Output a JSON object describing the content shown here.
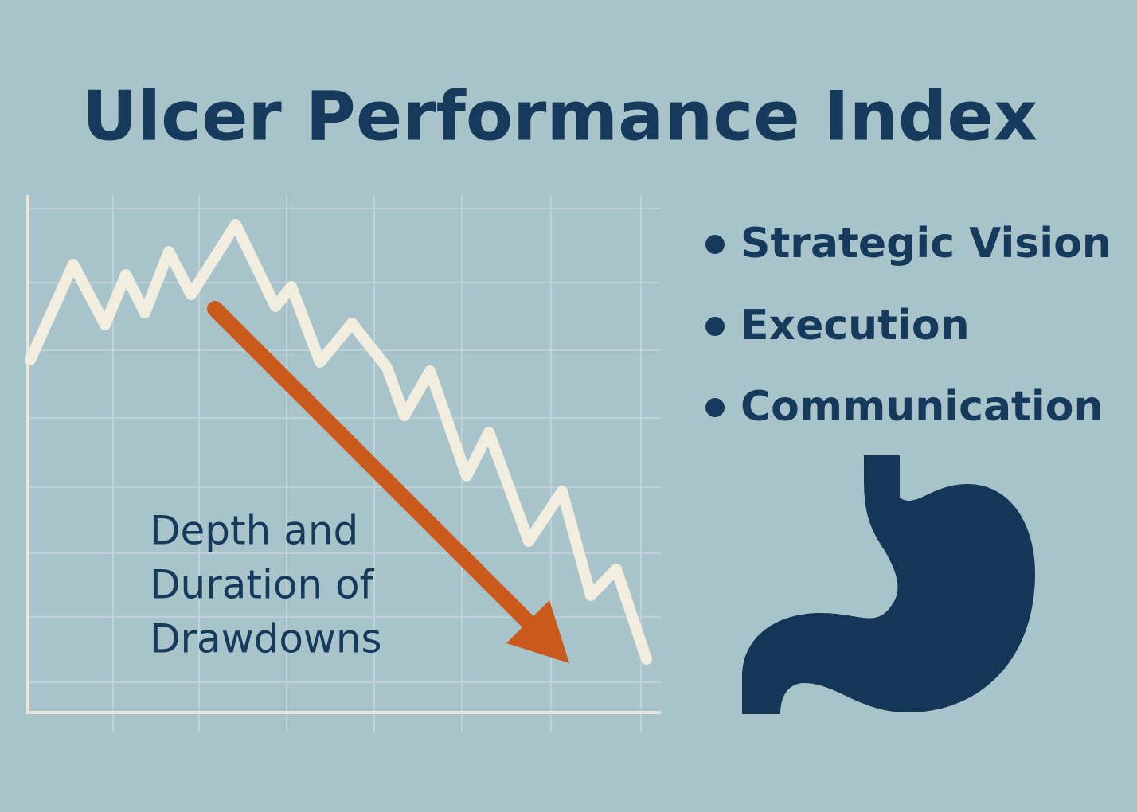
{
  "title": "Ulcer Performance Index",
  "annotation": {
    "lines": [
      "Depth and",
      "Duration of",
      "Drawdowns"
    ]
  },
  "bullets": [
    "Strategic Vision",
    "Execution",
    "Communication"
  ]
}
